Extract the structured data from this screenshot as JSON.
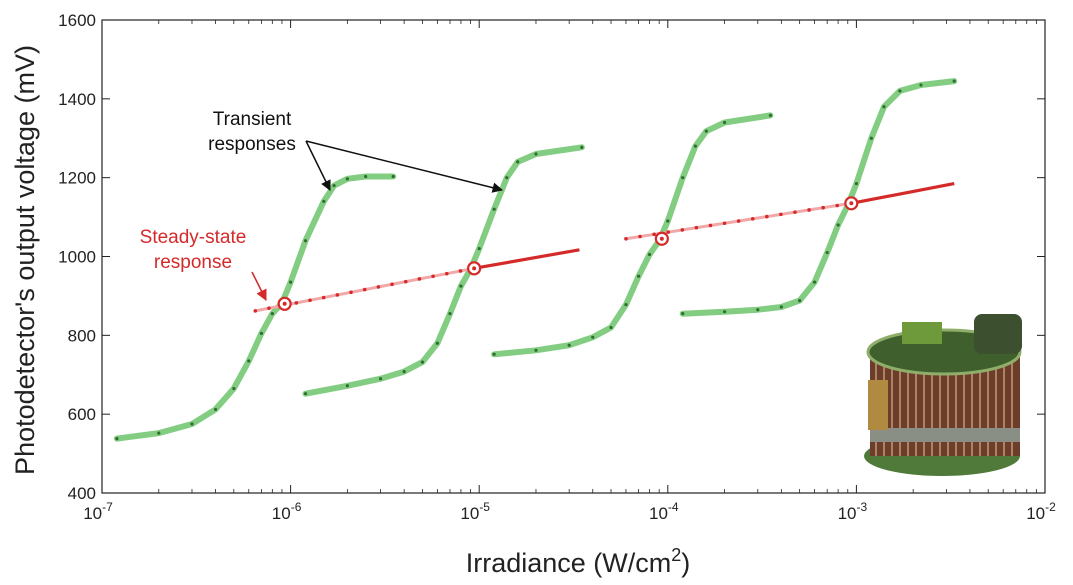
{
  "chart_data": {
    "type": "line",
    "xlabel": "Irradiance (W/cm",
    "xlabel_sup": "2",
    "xlabel_close": ")",
    "ylabel": "Photodetector's output voltage (mV)",
    "x_scale": "log",
    "xlim": [
      1e-07,
      0.01
    ],
    "ylim": [
      400,
      1600
    ],
    "grid": false,
    "x_ticks": [
      {
        "value": 1e-07,
        "base": "10",
        "exp": "-7"
      },
      {
        "value": 1e-06,
        "base": "10",
        "exp": "-6"
      },
      {
        "value": 1e-05,
        "base": "10",
        "exp": "-5"
      },
      {
        "value": 0.0001,
        "base": "10",
        "exp": "-4"
      },
      {
        "value": 0.001,
        "base": "10",
        "exp": "-3"
      },
      {
        "value": 0.01,
        "base": "10",
        "exp": "-2"
      }
    ],
    "y_ticks": [
      400,
      600,
      800,
      1000,
      1200,
      1400,
      1600
    ],
    "colors": {
      "transient": "#6cc46c",
      "transient_dots": "#2f6e2f",
      "steady": "#d42a2a",
      "steady_faint": "#f2a8a8",
      "annotation_black": "#111111"
    },
    "transient_series": [
      {
        "points": [
          [
            1.2e-07,
            538
          ],
          [
            2e-07,
            552
          ],
          [
            3e-07,
            575
          ],
          [
            4e-07,
            612
          ],
          [
            5e-07,
            665
          ],
          [
            6e-07,
            735
          ],
          [
            7e-07,
            805
          ],
          [
            8e-07,
            855
          ],
          [
            9e-07,
            882
          ],
          [
            1e-06,
            935
          ],
          [
            1.2e-06,
            1040
          ],
          [
            1.5e-06,
            1140
          ],
          [
            1.7e-06,
            1180
          ],
          [
            2e-06,
            1197
          ],
          [
            2.5e-06,
            1203
          ],
          [
            3.5e-06,
            1203
          ]
        ]
      },
      {
        "points": [
          [
            1.2e-06,
            652
          ],
          [
            2e-06,
            672
          ],
          [
            3e-06,
            690
          ],
          [
            4e-06,
            708
          ],
          [
            5e-06,
            732
          ],
          [
            6e-06,
            780
          ],
          [
            7e-06,
            855
          ],
          [
            8e-06,
            925
          ],
          [
            9e-06,
            968
          ],
          [
            1e-05,
            1020
          ],
          [
            1.2e-05,
            1120
          ],
          [
            1.4e-05,
            1200
          ],
          [
            1.6e-05,
            1240
          ],
          [
            2e-05,
            1260
          ],
          [
            3.5e-05,
            1277
          ]
        ]
      },
      {
        "points": [
          [
            1.2e-05,
            752
          ],
          [
            2e-05,
            762
          ],
          [
            3e-05,
            775
          ],
          [
            4e-05,
            795
          ],
          [
            5e-05,
            820
          ],
          [
            6e-05,
            878
          ],
          [
            7e-05,
            950
          ],
          [
            8e-05,
            1005
          ],
          [
            9e-05,
            1040
          ],
          [
            0.0001,
            1090
          ],
          [
            0.00012,
            1200
          ],
          [
            0.00014,
            1280
          ],
          [
            0.00016,
            1318
          ],
          [
            0.0002,
            1340
          ],
          [
            0.00035,
            1358
          ]
        ]
      },
      {
        "points": [
          [
            0.00012,
            855
          ],
          [
            0.0002,
            860
          ],
          [
            0.0003,
            865
          ],
          [
            0.0004,
            872
          ],
          [
            0.0005,
            888
          ],
          [
            0.0006,
            935
          ],
          [
            0.0007,
            1010
          ],
          [
            0.0008,
            1080
          ],
          [
            0.0009,
            1130
          ],
          [
            0.001,
            1185
          ],
          [
            0.0012,
            1300
          ],
          [
            0.0014,
            1380
          ],
          [
            0.0017,
            1420
          ],
          [
            0.0022,
            1435
          ],
          [
            0.0033,
            1445
          ]
        ]
      }
    ],
    "steady_state_series": {
      "faint_segments": [
        {
          "points": [
            [
              6.5e-07,
              862
            ],
            [
              9.4e-06,
              970
            ]
          ]
        },
        {
          "points": [
            [
              6e-05,
              1045
            ],
            [
              0.00094,
              1135
            ]
          ]
        }
      ],
      "solid_segments": [
        {
          "points": [
            [
              9.4e-06,
              970
            ],
            [
              3.4e-05,
              1017
            ]
          ]
        },
        {
          "points": [
            [
              0.00094,
              1135
            ],
            [
              0.0033,
              1185
            ]
          ]
        }
      ],
      "circled_points": [
        [
          9.3e-07,
          880
        ],
        [
          9.4e-06,
          970
        ],
        [
          9.3e-05,
          1045
        ],
        [
          0.00094,
          1135
        ]
      ]
    },
    "annotations": {
      "transient_line1": "Transient",
      "transient_line2": "responses",
      "steady_line1": "Steady-state",
      "steady_line2": "response"
    }
  }
}
